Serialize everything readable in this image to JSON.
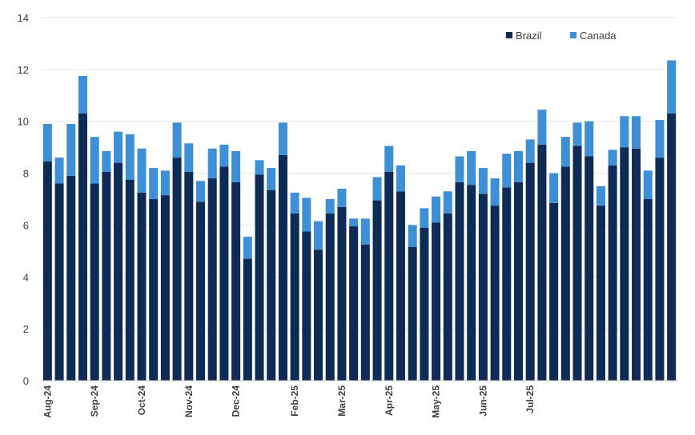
{
  "chart_data": {
    "type": "bar",
    "stacked": true,
    "title": "",
    "xlabel": "",
    "ylabel": "",
    "ylim": [
      0,
      14
    ],
    "yticks": [
      0,
      2,
      4,
      6,
      8,
      10,
      12,
      14
    ],
    "grid": true,
    "legend_position": "top-right",
    "month_labels": [
      "Aug-24",
      "Sep-24",
      "Oct-24",
      "Nov-24",
      "Dec-24",
      "Feb-25",
      "Mar-25",
      "Apr-25",
      "May-25",
      "Jun-25",
      "Jul-25"
    ],
    "month_label_bar_index": [
      0,
      4,
      8,
      12,
      16,
      21,
      25,
      29,
      33,
      37,
      41
    ],
    "colors": {
      "Brazil": "#0d2b55",
      "Canada": "#3d8fd6"
    },
    "series": [
      {
        "name": "Brazil",
        "values": [
          8.45,
          7.6,
          7.9,
          10.3,
          7.6,
          8.05,
          8.4,
          7.75,
          7.25,
          7.0,
          7.15,
          8.6,
          8.05,
          6.9,
          7.8,
          8.25,
          7.65,
          4.7,
          7.95,
          7.35,
          8.7,
          6.45,
          5.75,
          5.05,
          6.45,
          6.7,
          5.95,
          5.25,
          6.95,
          8.05,
          7.3,
          5.15,
          5.9,
          6.1,
          6.45,
          7.65,
          7.55,
          7.2,
          6.75,
          7.45,
          7.65,
          8.4,
          9.1,
          6.85,
          8.25,
          9.05,
          8.65,
          6.75,
          8.3,
          9.0,
          8.95,
          7.0,
          8.6,
          10.3
        ]
      },
      {
        "name": "Canada",
        "values": [
          1.45,
          1.0,
          2.0,
          1.45,
          1.8,
          0.8,
          1.2,
          1.75,
          1.7,
          1.2,
          0.95,
          1.35,
          1.1,
          0.8,
          1.15,
          0.85,
          1.2,
          0.85,
          0.55,
          0.85,
          1.25,
          0.8,
          1.3,
          1.1,
          0.55,
          0.7,
          0.3,
          1.0,
          0.9,
          1.0,
          1.0,
          0.85,
          0.75,
          1.0,
          0.85,
          1.0,
          1.3,
          1.0,
          1.05,
          1.3,
          1.2,
          0.9,
          1.35,
          1.15,
          1.15,
          0.9,
          1.35,
          0.75,
          0.6,
          1.2,
          1.25,
          1.1,
          1.45,
          2.05
        ]
      }
    ]
  }
}
